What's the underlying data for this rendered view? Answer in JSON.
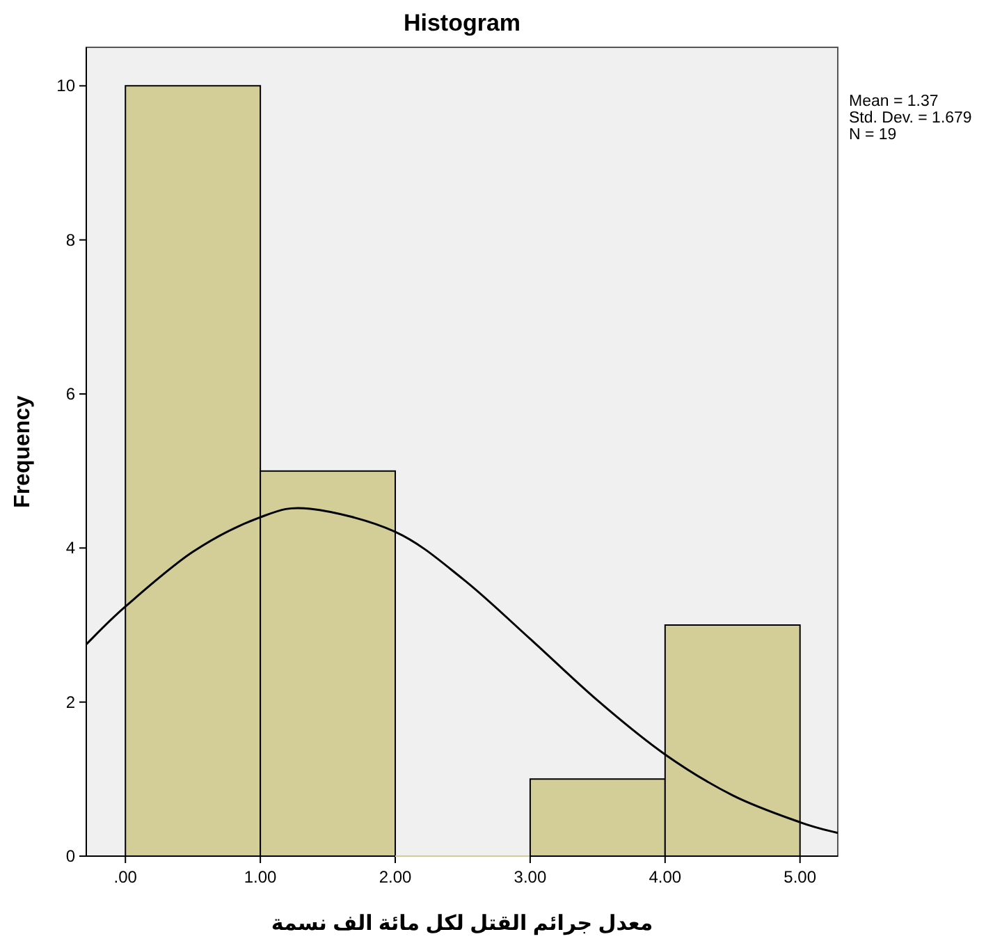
{
  "chart_data": {
    "type": "histogram",
    "title": "Histogram",
    "xlabel": "معدل جرائم القتل لكل مائة الف نسمة",
    "ylabel": "Frequency",
    "bins": [
      0,
      1,
      2,
      3,
      4,
      5
    ],
    "values": [
      10,
      5,
      0,
      1,
      3
    ],
    "color": "#d3ce97",
    "series": [
      {
        "type": "line",
        "color": "#000000",
        "x": [
          -0.29,
          0,
          0.5,
          1,
          1.37,
          2,
          2.5,
          3,
          3.5,
          4,
          4.5,
          5,
          5.28
        ],
        "values": [
          2.75,
          3.24,
          3.95,
          4.4,
          4.51,
          4.21,
          3.6,
          2.82,
          2.02,
          1.32,
          0.79,
          0.44,
          0.3
        ]
      }
    ],
    "xlim": [
      -0.29,
      5.28
    ],
    "ylim": [
      0,
      10.5
    ],
    "xticks": [
      {
        "value": 0,
        "label": ".00"
      },
      {
        "value": 1,
        "label": "1.00"
      },
      {
        "value": 2,
        "label": "2.00"
      },
      {
        "value": 3,
        "label": "3.00"
      },
      {
        "value": 4,
        "label": "4.00"
      },
      {
        "value": 5,
        "label": "5.00"
      }
    ],
    "yticks": [
      0,
      2,
      4,
      6,
      8,
      10
    ],
    "annotations": [
      "Mean = 1.37",
      "Std. Dev. = 1.679",
      "N = 19"
    ]
  }
}
